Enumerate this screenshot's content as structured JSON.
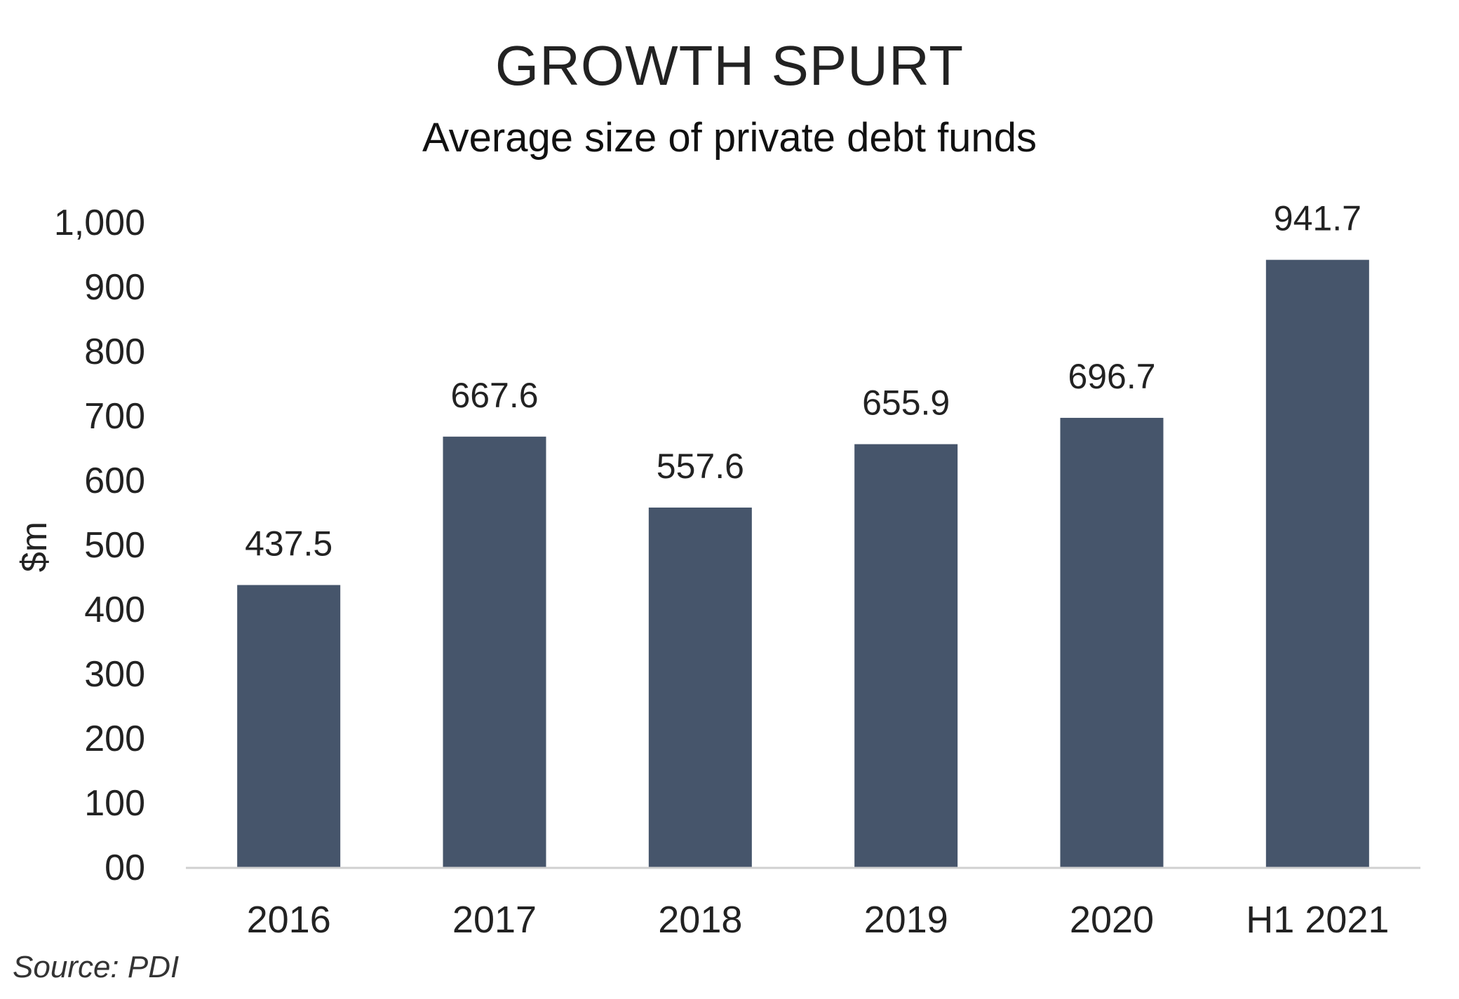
{
  "title": "GROWTH SPURT",
  "subtitle": "Average size of private debt funds",
  "source": "Source: PDI",
  "colors": {
    "bar": "#46556b",
    "axis_line": "#d0d0d0",
    "text": "#222222"
  },
  "chart_data": {
    "type": "bar",
    "categories": [
      "2016",
      "2017",
      "2018",
      "2019",
      "2020",
      "H1 2021"
    ],
    "values": [
      437.5,
      667.6,
      557.6,
      655.9,
      696.7,
      941.7
    ],
    "value_labels": [
      "437.5",
      "667.6",
      "557.6",
      "655.9",
      "696.7",
      "941.7"
    ],
    "ylabel": "$m",
    "xlabel": "",
    "ylim": [
      0,
      1000
    ],
    "yticks": [
      0,
      100,
      200,
      300,
      400,
      500,
      600,
      700,
      800,
      900,
      1000
    ],
    "ytick_labels": [
      "00",
      "100",
      "200",
      "300",
      "400",
      "500",
      "600",
      "700",
      "800",
      "900",
      "1,000"
    ],
    "grid": false,
    "legend": "none"
  }
}
